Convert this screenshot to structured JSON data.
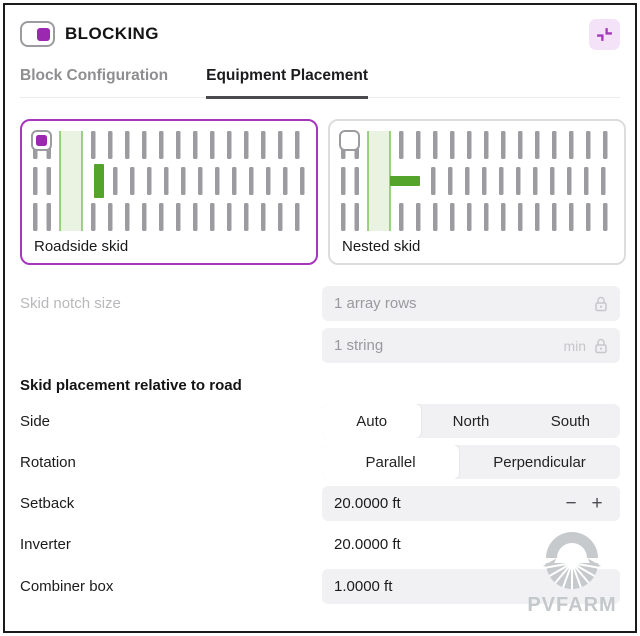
{
  "header": {
    "title": "BLOCKING"
  },
  "tabs": [
    {
      "label": "Block Configuration",
      "active": false
    },
    {
      "label": "Equipment Placement",
      "active": true
    }
  ],
  "cards": [
    {
      "label": "Roadside skid",
      "selected": true
    },
    {
      "label": "Nested skid",
      "selected": false
    }
  ],
  "form": {
    "skid_notch": {
      "label": "Skid notch size",
      "rows_value": "1 array rows",
      "string_value": "1 string",
      "string_suffix": "min"
    },
    "section_header": "Skid placement relative to road",
    "side": {
      "label": "Side",
      "options": [
        "Auto",
        "North",
        "South"
      ],
      "selected": "Auto"
    },
    "rotation": {
      "label": "Rotation",
      "options": [
        "Parallel",
        "Perpendicular"
      ],
      "selected": "Parallel"
    },
    "setback": {
      "label": "Setback",
      "value": "20.0000 ft",
      "minus": "−",
      "plus": "+"
    },
    "inverter": {
      "label": "Inverter",
      "value": "20.0000 ft"
    },
    "combiner": {
      "label": "Combiner box",
      "value": "1.0000 ft"
    }
  },
  "watermark": {
    "text": "PVFARM"
  },
  "colors": {
    "accent_purple": "#9c27b0",
    "selected_card_border": "#a636bd",
    "skid_green": "#54a32b",
    "road_fill": "#eaf3e1",
    "road_border": "#7cc35c",
    "bar_gray": "#9c9ca0"
  }
}
